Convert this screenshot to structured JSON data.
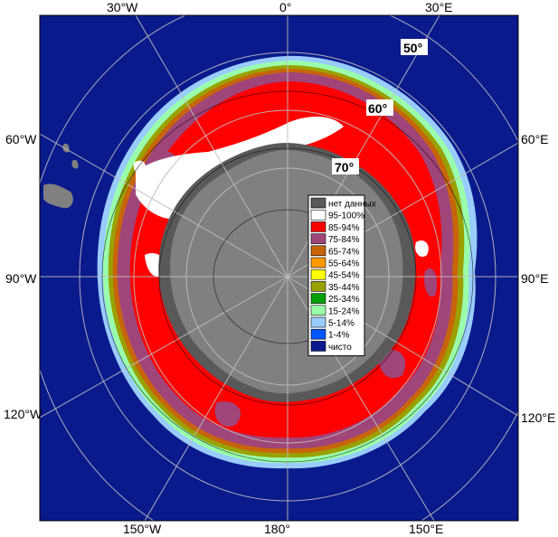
{
  "map": {
    "lon_labels": {
      "top_w30": "30°W",
      "top_0": "0°",
      "top_e30": "30°E",
      "left_w60": "60°W",
      "left_w90": "90°W",
      "left_w120": "120°W",
      "right_e60": "60°E",
      "right_e90": "90°E",
      "right_e120": "120°E",
      "bot_w150": "150°W",
      "bot_180": "180°",
      "bot_e150": "150°E"
    },
    "lat_labels": {
      "lat50": "50°",
      "lat60": "60°",
      "lat70": "70°"
    },
    "colors": {
      "ocean": "#0a1a8c",
      "land": "#808080",
      "shelf": "#595959",
      "frame": "#000000",
      "grid": "#bfbfbf"
    }
  },
  "legend": {
    "items": [
      {
        "label": "нет данных",
        "color": "#595959"
      },
      {
        "label": "95-100%",
        "color": "#ffffff"
      },
      {
        "label": "85-94%",
        "color": "#ff0000"
      },
      {
        "label": "75-84%",
        "color": "#a0457a"
      },
      {
        "label": "65-74%",
        "color": "#c8640a"
      },
      {
        "label": "55-64%",
        "color": "#ff9900"
      },
      {
        "label": "45-54%",
        "color": "#ffff00"
      },
      {
        "label": "35-44%",
        "color": "#99a000"
      },
      {
        "label": "25-34%",
        "color": "#00a000"
      },
      {
        "label": "15-24%",
        "color": "#99ffaa"
      },
      {
        "label": "5-14%",
        "color": "#99ccff"
      },
      {
        "label": "1-4%",
        "color": "#0055ff"
      },
      {
        "label": "чисто",
        "color": "#0a1a8c"
      }
    ]
  }
}
